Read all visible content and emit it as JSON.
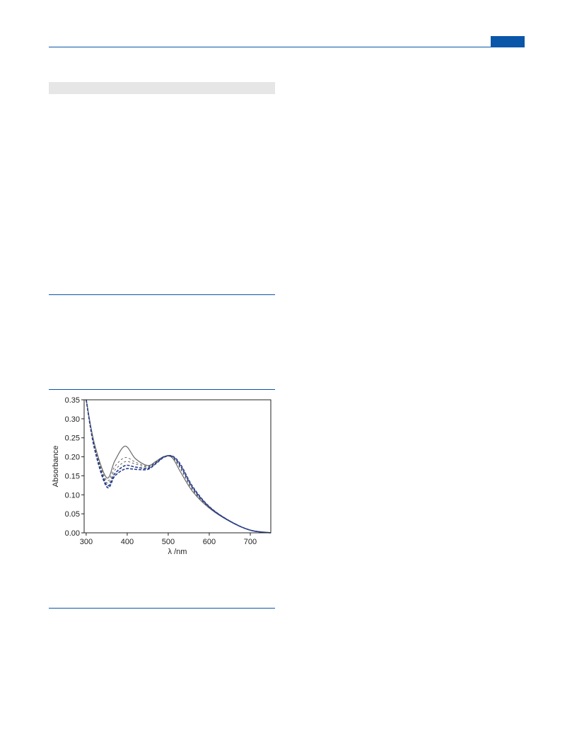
{
  "colors": {
    "accent": "#0a56a8",
    "band": "#e6e6e6"
  },
  "chart_data": {
    "type": "line",
    "xlabel": "λ /nm",
    "ylabel": "Absorbance",
    "xlim": [
      295,
      750
    ],
    "ylim": [
      0,
      0.35
    ],
    "x_ticks": [
      "300",
      "400",
      "500",
      "600",
      "700"
    ],
    "y_ticks": [
      "0.00",
      "0.05",
      "0.10",
      "0.15",
      "0.20",
      "0.25",
      "0.30",
      "0.35"
    ],
    "grid": false,
    "legend": "none",
    "series": [
      {
        "style": "solid",
        "color": "#6b6b6b",
        "width": 1.2,
        "x": [
          300,
          320,
          350,
          370,
          395,
          420,
          450,
          470,
          490,
          510,
          530,
          560,
          600,
          650,
          700,
          750
        ],
        "y": [
          0.35,
          0.235,
          0.145,
          0.19,
          0.228,
          0.195,
          0.177,
          0.188,
          0.201,
          0.197,
          0.16,
          0.108,
          0.065,
          0.03,
          0.007,
          0.0
        ]
      },
      {
        "style": "dashed",
        "color": "#555555",
        "width": 0.9,
        "x": [
          300,
          320,
          350,
          370,
          395,
          420,
          450,
          470,
          490,
          510,
          530,
          560,
          600,
          650,
          700,
          750
        ],
        "y": [
          0.35,
          0.23,
          0.138,
          0.175,
          0.198,
          0.186,
          0.175,
          0.187,
          0.201,
          0.199,
          0.168,
          0.112,
          0.066,
          0.03,
          0.007,
          0.0
        ]
      },
      {
        "style": "dashed",
        "color": "#555555",
        "width": 0.9,
        "x": [
          300,
          320,
          350,
          370,
          395,
          420,
          450,
          470,
          490,
          510,
          530,
          560,
          600,
          650,
          700,
          750
        ],
        "y": [
          0.35,
          0.227,
          0.132,
          0.165,
          0.187,
          0.181,
          0.173,
          0.186,
          0.201,
          0.2,
          0.172,
          0.115,
          0.067,
          0.03,
          0.007,
          0.0
        ]
      },
      {
        "style": "dashed",
        "color": "#2b3f8a",
        "width": 1.6,
        "x": [
          300,
          320,
          350,
          370,
          395,
          420,
          450,
          470,
          490,
          510,
          530,
          560,
          600,
          650,
          700,
          750
        ],
        "y": [
          0.35,
          0.224,
          0.126,
          0.156,
          0.177,
          0.173,
          0.17,
          0.184,
          0.2,
          0.201,
          0.176,
          0.118,
          0.068,
          0.031,
          0.007,
          0.0
        ]
      },
      {
        "style": "dashed",
        "color": "#2b3f8a",
        "width": 1.6,
        "x": [
          300,
          320,
          350,
          370,
          395,
          420,
          450,
          470,
          490,
          510,
          530,
          560,
          600,
          650,
          700,
          750
        ],
        "y": [
          0.35,
          0.222,
          0.121,
          0.15,
          0.168,
          0.167,
          0.167,
          0.182,
          0.199,
          0.202,
          0.18,
          0.121,
          0.069,
          0.031,
          0.007,
          0.0
        ]
      }
    ]
  }
}
